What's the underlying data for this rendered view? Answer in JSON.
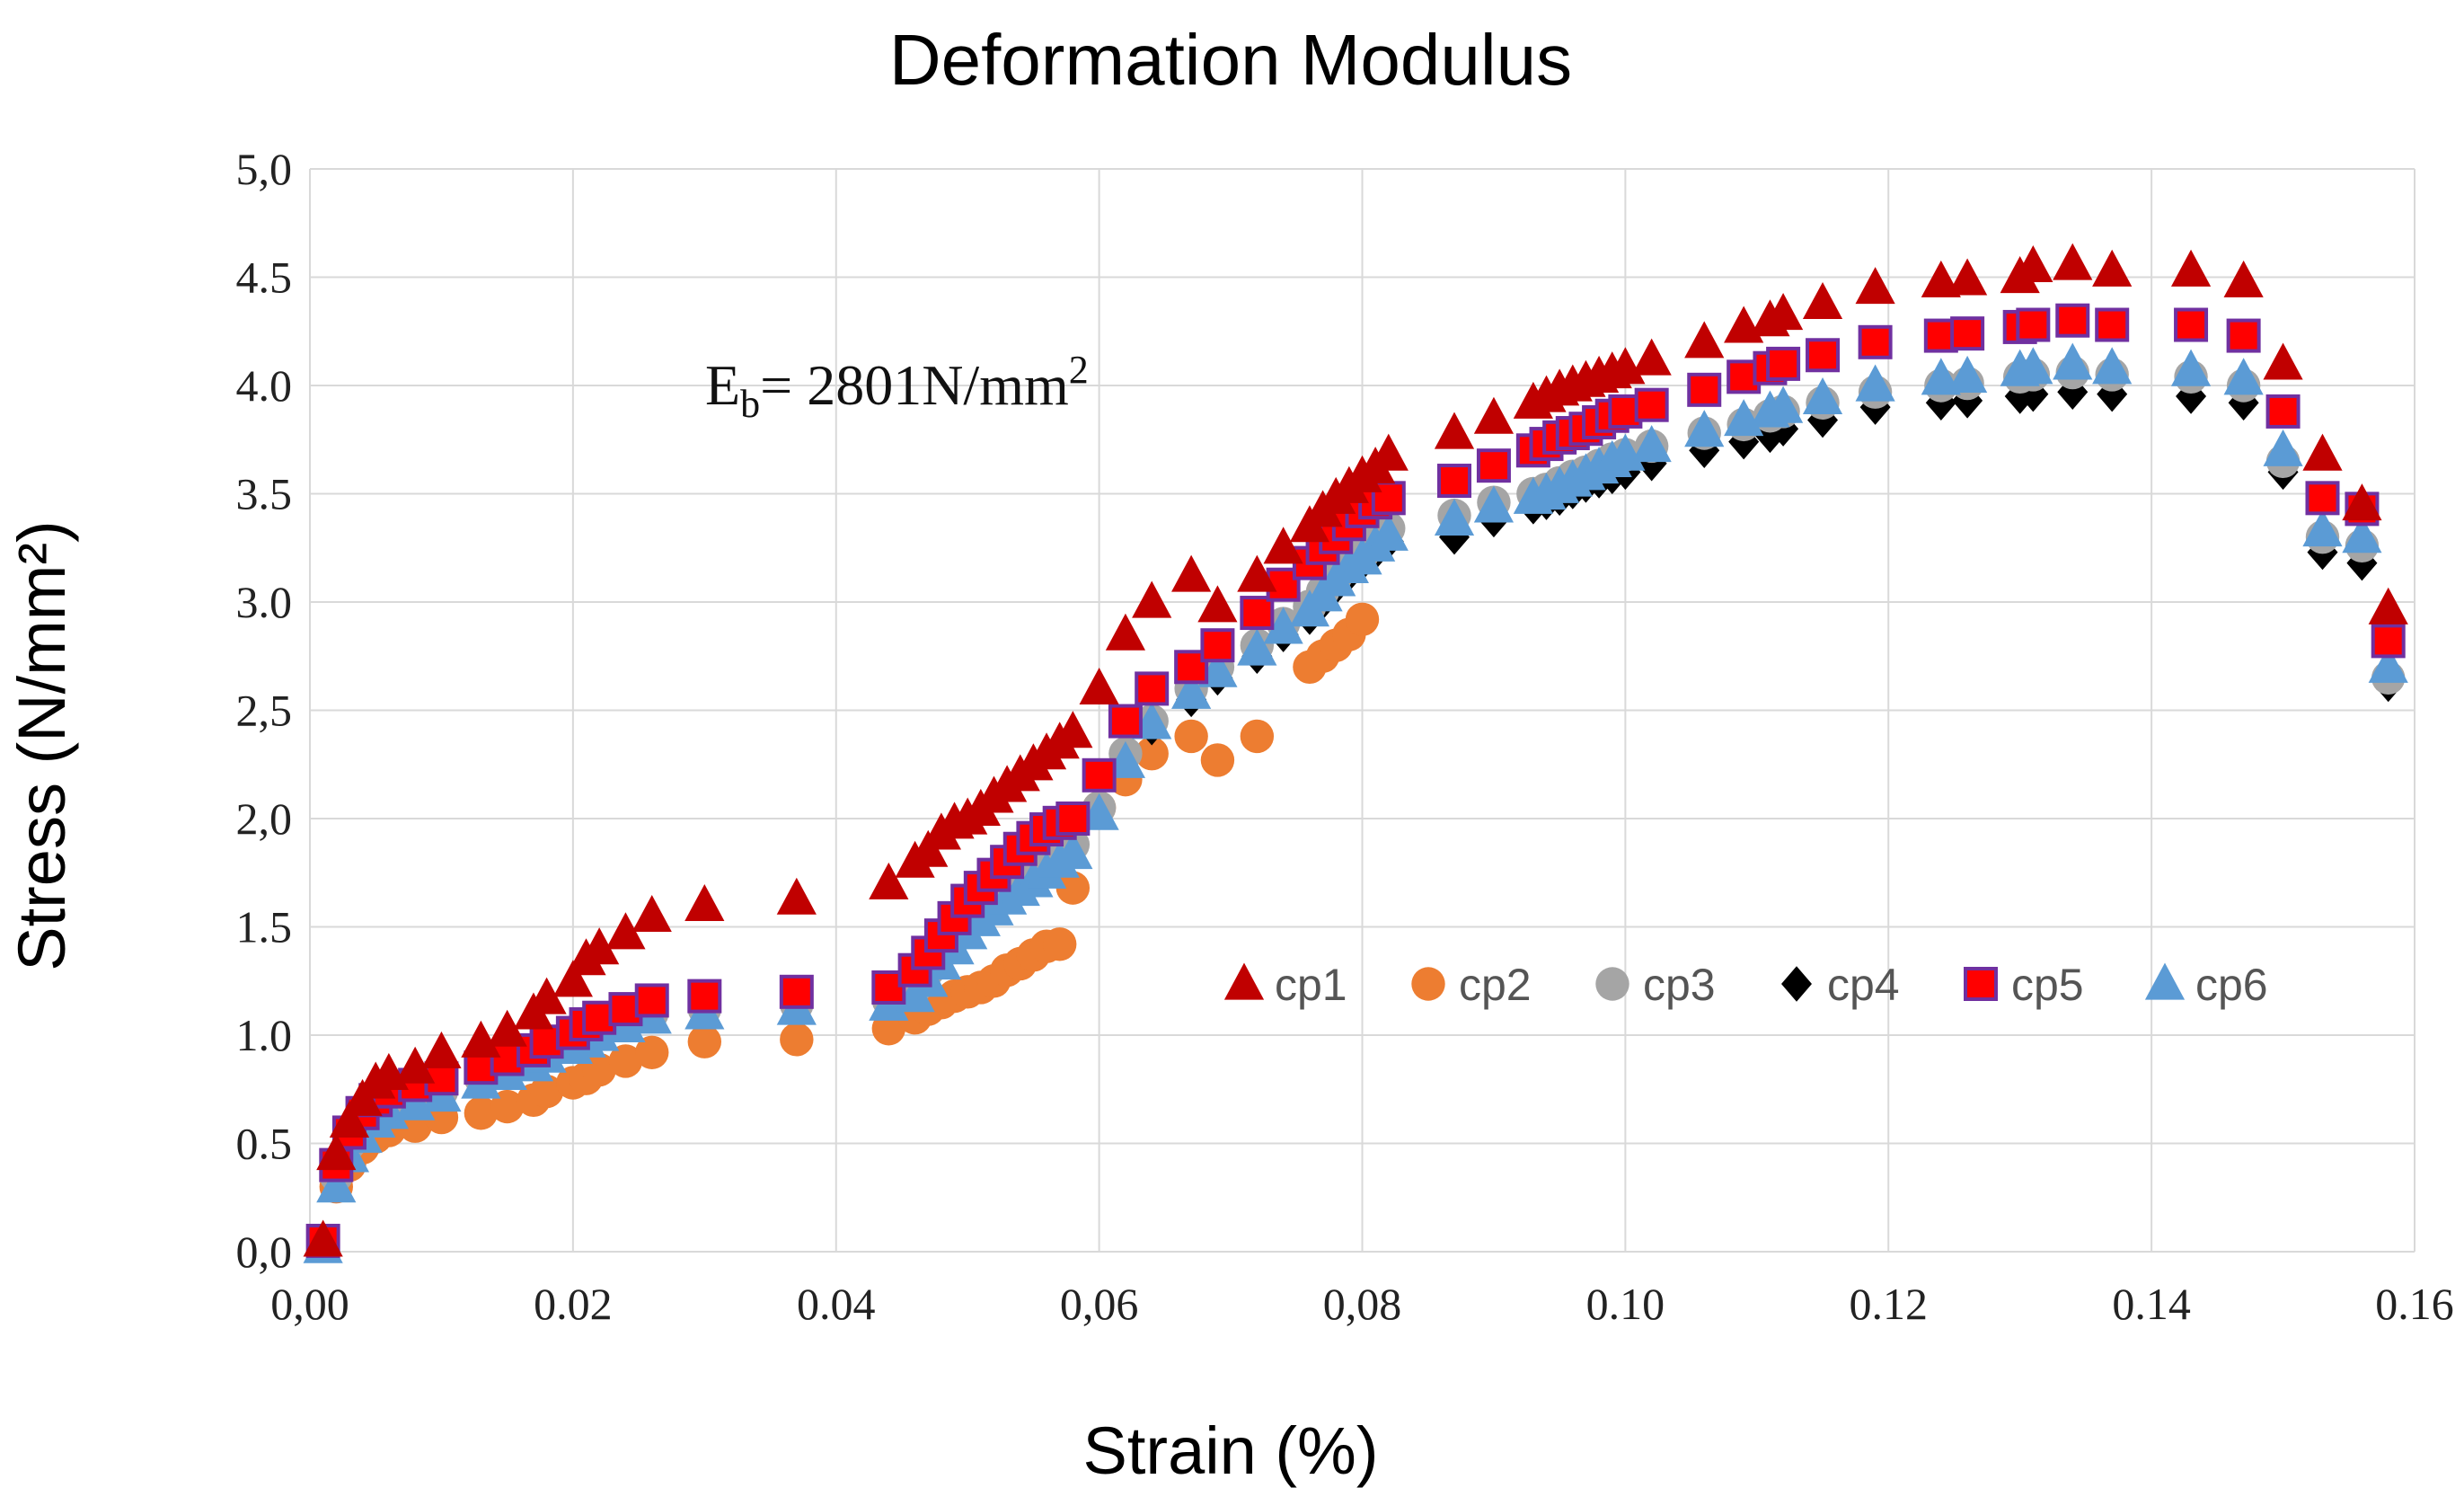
{
  "chart_data": {
    "type": "scatter",
    "title": "Deformation Modulus",
    "xlabel": "Strain (%)",
    "ylabel": "Stress (N/mm²)",
    "xlim": [
      0,
      0.16
    ],
    "ylim": [
      0,
      5
    ],
    "x_ticks": [
      "0,00",
      "0.02",
      "0.04",
      "0,06",
      "0,08",
      "0.10",
      "0.12",
      "0.14",
      "0.16"
    ],
    "y_ticks": [
      "0,0",
      "0.5",
      "1.0",
      "1.5",
      "2,0",
      "2,5",
      "3.0",
      "3.5",
      "4.0",
      "4.5",
      "5,0"
    ],
    "grid": true,
    "legend_position": "center-right",
    "annotation": {
      "prefix": "E",
      "subscript": "b",
      "value": "= 2801N/mm",
      "superscript": "2"
    },
    "series": [
      {
        "name": "cp1",
        "marker": "triangle",
        "color": "#c00000",
        "x": [
          0.001,
          0.002,
          0.003,
          0.004,
          0.005,
          0.006,
          0.008,
          0.01,
          0.013,
          0.015,
          0.017,
          0.018,
          0.02,
          0.021,
          0.022,
          0.024,
          0.026,
          0.03,
          0.037,
          0.044,
          0.046,
          0.047,
          0.048,
          0.049,
          0.05,
          0.051,
          0.052,
          0.053,
          0.054,
          0.055,
          0.056,
          0.057,
          0.058,
          0.06,
          0.062,
          0.064,
          0.067,
          0.069,
          0.072,
          0.074,
          0.076,
          0.077,
          0.078,
          0.079,
          0.08,
          0.081,
          0.082,
          0.087,
          0.09,
          0.093,
          0.094,
          0.095,
          0.096,
          0.097,
          0.098,
          0.099,
          0.1,
          0.102,
          0.106,
          0.109,
          0.111,
          0.112,
          0.115,
          0.119,
          0.124,
          0.126,
          0.13,
          0.131,
          0.134,
          0.137,
          0.143,
          0.147,
          0.15,
          0.153,
          0.156,
          0.158
        ],
        "y": [
          0.05,
          0.45,
          0.6,
          0.7,
          0.78,
          0.82,
          0.85,
          0.92,
          0.97,
          1.02,
          1.1,
          1.17,
          1.25,
          1.35,
          1.4,
          1.47,
          1.55,
          1.6,
          1.63,
          1.7,
          1.8,
          1.85,
          1.93,
          1.98,
          2.0,
          2.04,
          2.1,
          2.15,
          2.2,
          2.25,
          2.3,
          2.35,
          2.4,
          2.6,
          2.85,
          3.0,
          3.12,
          2.98,
          3.12,
          3.25,
          3.35,
          3.42,
          3.48,
          3.53,
          3.58,
          3.62,
          3.68,
          3.78,
          3.85,
          3.92,
          3.95,
          3.98,
          4.0,
          4.02,
          4.04,
          4.06,
          4.08,
          4.12,
          4.2,
          4.27,
          4.3,
          4.33,
          4.38,
          4.45,
          4.48,
          4.49,
          4.5,
          4.55,
          4.56,
          4.53,
          4.53,
          4.48,
          4.1,
          3.68,
          3.45,
          2.97
        ]
      },
      {
        "name": "cp2",
        "marker": "circle",
        "color": "#ed7d31",
        "x": [
          0.001,
          0.002,
          0.003,
          0.004,
          0.005,
          0.006,
          0.008,
          0.01,
          0.013,
          0.015,
          0.017,
          0.018,
          0.02,
          0.021,
          0.022,
          0.024,
          0.026,
          0.03,
          0.037,
          0.044,
          0.046,
          0.047,
          0.048,
          0.049,
          0.05,
          0.051,
          0.052,
          0.053,
          0.054,
          0.055,
          0.056,
          0.057,
          0.058,
          0.06,
          0.062,
          0.064,
          0.067,
          0.069,
          0.072,
          0.076,
          0.077,
          0.078,
          0.079,
          0.08
        ],
        "y": [
          0.05,
          0.3,
          0.4,
          0.48,
          0.53,
          0.56,
          0.58,
          0.62,
          0.64,
          0.67,
          0.7,
          0.74,
          0.78,
          0.8,
          0.84,
          0.88,
          0.92,
          0.97,
          0.98,
          1.03,
          1.08,
          1.12,
          1.15,
          1.18,
          1.2,
          1.22,
          1.25,
          1.3,
          1.33,
          1.37,
          1.41,
          1.42,
          1.68,
          2.05,
          2.18,
          2.3,
          2.38,
          2.27,
          2.38,
          2.7,
          2.75,
          2.8,
          2.85,
          2.92
        ]
      },
      {
        "name": "cp3",
        "marker": "circle",
        "color": "#a5a5a5",
        "x": [
          0.001,
          0.002,
          0.003,
          0.004,
          0.005,
          0.006,
          0.008,
          0.01,
          0.013,
          0.015,
          0.017,
          0.018,
          0.02,
          0.021,
          0.022,
          0.024,
          0.026,
          0.03,
          0.037,
          0.044,
          0.046,
          0.047,
          0.048,
          0.049,
          0.05,
          0.051,
          0.052,
          0.053,
          0.054,
          0.055,
          0.056,
          0.057,
          0.058,
          0.06,
          0.062,
          0.064,
          0.067,
          0.069,
          0.072,
          0.074,
          0.076,
          0.077,
          0.078,
          0.079,
          0.08,
          0.081,
          0.082,
          0.087,
          0.09,
          0.093,
          0.094,
          0.095,
          0.096,
          0.097,
          0.098,
          0.099,
          0.1,
          0.102,
          0.106,
          0.109,
          0.111,
          0.112,
          0.115,
          0.119,
          0.124,
          0.126,
          0.13,
          0.131,
          0.134,
          0.137,
          0.143,
          0.147,
          0.15,
          0.153,
          0.156,
          0.158
        ],
        "y": [
          0.05,
          0.35,
          0.5,
          0.58,
          0.63,
          0.67,
          0.7,
          0.74,
          0.8,
          0.84,
          0.88,
          0.92,
          0.96,
          1.0,
          1.02,
          1.06,
          1.1,
          1.12,
          1.14,
          1.16,
          1.22,
          1.3,
          1.38,
          1.45,
          1.52,
          1.58,
          1.63,
          1.68,
          1.72,
          1.76,
          1.8,
          1.84,
          1.88,
          2.05,
          2.3,
          2.45,
          2.6,
          2.7,
          2.8,
          2.9,
          2.98,
          3.05,
          3.12,
          3.18,
          3.22,
          3.28,
          3.34,
          3.4,
          3.46,
          3.5,
          3.52,
          3.55,
          3.58,
          3.6,
          3.63,
          3.66,
          3.68,
          3.72,
          3.78,
          3.82,
          3.86,
          3.88,
          3.92,
          3.97,
          4.0,
          4.01,
          4.04,
          4.05,
          4.06,
          4.05,
          4.04,
          4.0,
          3.65,
          3.3,
          3.26,
          2.65
        ]
      },
      {
        "name": "cp4",
        "marker": "diamond",
        "color": "#000000",
        "x": [
          0.001,
          0.002,
          0.003,
          0.004,
          0.005,
          0.006,
          0.008,
          0.01,
          0.013,
          0.015,
          0.017,
          0.018,
          0.02,
          0.021,
          0.022,
          0.024,
          0.026,
          0.03,
          0.037,
          0.044,
          0.046,
          0.047,
          0.048,
          0.049,
          0.05,
          0.051,
          0.052,
          0.053,
          0.054,
          0.055,
          0.056,
          0.057,
          0.058,
          0.06,
          0.062,
          0.064,
          0.067,
          0.069,
          0.072,
          0.074,
          0.076,
          0.077,
          0.078,
          0.079,
          0.08,
          0.081,
          0.082,
          0.087,
          0.09,
          0.093,
          0.094,
          0.095,
          0.096,
          0.097,
          0.098,
          0.099,
          0.1,
          0.102,
          0.106,
          0.109,
          0.111,
          0.112,
          0.115,
          0.119,
          0.124,
          0.126,
          0.13,
          0.131,
          0.134,
          0.137,
          0.143,
          0.147,
          0.15,
          0.153,
          0.156,
          0.158
        ],
        "y": [
          0.05,
          0.34,
          0.48,
          0.56,
          0.62,
          0.66,
          0.69,
          0.73,
          0.79,
          0.83,
          0.87,
          0.91,
          0.95,
          0.98,
          1.01,
          1.05,
          1.09,
          1.11,
          1.13,
          1.15,
          1.2,
          1.28,
          1.36,
          1.43,
          1.5,
          1.56,
          1.61,
          1.66,
          1.7,
          1.74,
          1.78,
          1.82,
          1.86,
          2.03,
          2.28,
          2.42,
          2.55,
          2.65,
          2.75,
          2.85,
          2.93,
          3.0,
          3.07,
          3.13,
          3.18,
          3.23,
          3.28,
          3.3,
          3.38,
          3.44,
          3.46,
          3.48,
          3.51,
          3.54,
          3.56,
          3.58,
          3.6,
          3.64,
          3.7,
          3.74,
          3.77,
          3.8,
          3.84,
          3.9,
          3.92,
          3.93,
          3.95,
          3.96,
          3.97,
          3.96,
          3.95,
          3.92,
          3.6,
          3.23,
          3.18,
          2.62
        ]
      },
      {
        "name": "cp5",
        "marker": "square",
        "color": "#ff0000",
        "stroke": "#7030a0",
        "x": [
          0.001,
          0.002,
          0.003,
          0.004,
          0.005,
          0.006,
          0.008,
          0.01,
          0.013,
          0.015,
          0.017,
          0.018,
          0.02,
          0.021,
          0.022,
          0.024,
          0.026,
          0.03,
          0.037,
          0.044,
          0.046,
          0.047,
          0.048,
          0.049,
          0.05,
          0.051,
          0.052,
          0.053,
          0.054,
          0.055,
          0.056,
          0.057,
          0.058,
          0.06,
          0.062,
          0.064,
          0.067,
          0.069,
          0.072,
          0.074,
          0.076,
          0.077,
          0.078,
          0.079,
          0.08,
          0.081,
          0.082,
          0.087,
          0.09,
          0.093,
          0.094,
          0.095,
          0.096,
          0.097,
          0.098,
          0.099,
          0.1,
          0.102,
          0.106,
          0.109,
          0.111,
          0.112,
          0.115,
          0.119,
          0.124,
          0.126,
          0.13,
          0.131,
          0.134,
          0.137,
          0.143,
          0.147,
          0.15,
          0.153,
          0.156,
          0.158
        ],
        "y": [
          0.05,
          0.4,
          0.55,
          0.64,
          0.7,
          0.74,
          0.77,
          0.8,
          0.85,
          0.89,
          0.93,
          0.97,
          1.01,
          1.05,
          1.08,
          1.12,
          1.16,
          1.18,
          1.2,
          1.22,
          1.3,
          1.38,
          1.46,
          1.54,
          1.62,
          1.68,
          1.74,
          1.8,
          1.86,
          1.91,
          1.95,
          1.98,
          2.0,
          2.2,
          2.45,
          2.6,
          2.7,
          2.8,
          2.95,
          3.08,
          3.18,
          3.25,
          3.3,
          3.36,
          3.42,
          3.46,
          3.48,
          3.56,
          3.63,
          3.7,
          3.73,
          3.76,
          3.78,
          3.8,
          3.83,
          3.86,
          3.88,
          3.91,
          3.98,
          4.04,
          4.08,
          4.1,
          4.14,
          4.2,
          4.23,
          4.24,
          4.27,
          4.28,
          4.3,
          4.28,
          4.28,
          4.23,
          3.88,
          3.48,
          3.43,
          2.82
        ]
      },
      {
        "name": "cp6",
        "marker": "triangle",
        "color": "#5b9bd5",
        "x": [
          0.001,
          0.002,
          0.003,
          0.004,
          0.005,
          0.006,
          0.008,
          0.01,
          0.013,
          0.015,
          0.017,
          0.018,
          0.02,
          0.021,
          0.022,
          0.024,
          0.026,
          0.03,
          0.037,
          0.044,
          0.046,
          0.047,
          0.048,
          0.049,
          0.05,
          0.051,
          0.052,
          0.053,
          0.054,
          0.055,
          0.056,
          0.057,
          0.058,
          0.06,
          0.062,
          0.064,
          0.067,
          0.069,
          0.072,
          0.074,
          0.076,
          0.077,
          0.078,
          0.079,
          0.08,
          0.081,
          0.082,
          0.087,
          0.09,
          0.093,
          0.094,
          0.095,
          0.096,
          0.097,
          0.098,
          0.099,
          0.1,
          0.102,
          0.106,
          0.109,
          0.111,
          0.112,
          0.115,
          0.119,
          0.124,
          0.126,
          0.13,
          0.131,
          0.134,
          0.137,
          0.143,
          0.147,
          0.15,
          0.153,
          0.156,
          0.158
        ],
        "y": [
          0.02,
          0.3,
          0.44,
          0.53,
          0.6,
          0.64,
          0.68,
          0.72,
          0.78,
          0.82,
          0.86,
          0.9,
          0.94,
          0.97,
          1.0,
          1.04,
          1.08,
          1.1,
          1.12,
          1.14,
          1.18,
          1.25,
          1.33,
          1.4,
          1.47,
          1.53,
          1.58,
          1.63,
          1.67,
          1.71,
          1.75,
          1.8,
          1.84,
          2.02,
          2.26,
          2.44,
          2.58,
          2.68,
          2.78,
          2.88,
          2.96,
          3.03,
          3.1,
          3.16,
          3.2,
          3.26,
          3.31,
          3.38,
          3.44,
          3.48,
          3.5,
          3.53,
          3.56,
          3.59,
          3.62,
          3.65,
          3.68,
          3.72,
          3.79,
          3.84,
          3.88,
          3.9,
          3.94,
          4.0,
          4.03,
          4.04,
          4.07,
          4.08,
          4.1,
          4.08,
          4.07,
          4.03,
          3.7,
          3.33,
          3.3,
          2.7
        ]
      }
    ]
  }
}
